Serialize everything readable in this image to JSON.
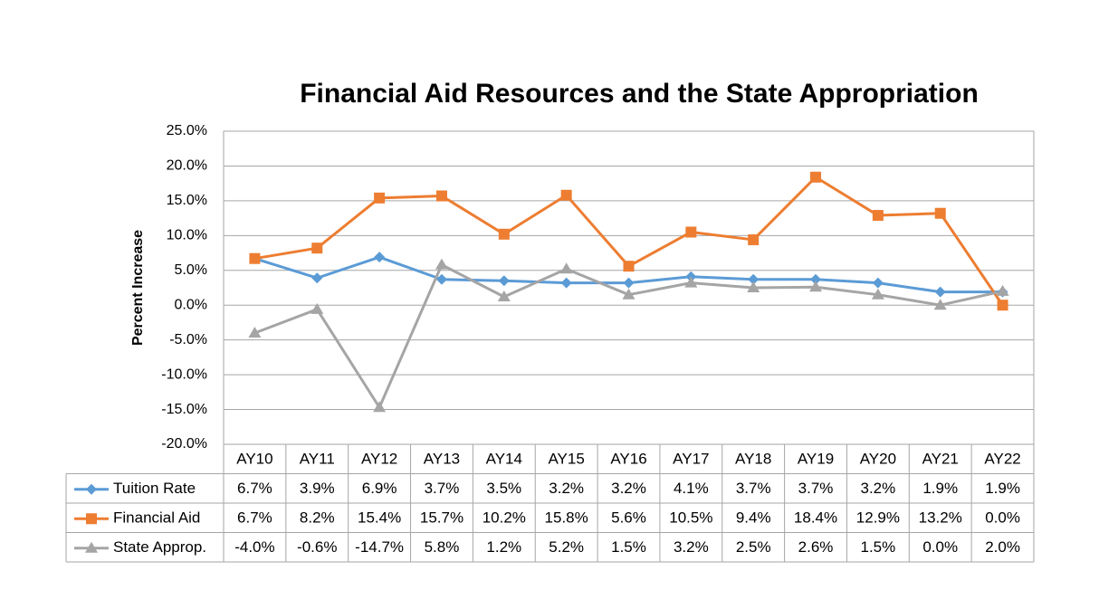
{
  "chart_data": {
    "type": "line",
    "title": "Financial Aid Resources and the State Appropriation",
    "y_label": "Percent Increase",
    "categories": [
      "AY10",
      "AY11",
      "AY12",
      "AY13",
      "AY14",
      "AY15",
      "AY16",
      "AY17",
      "AY18",
      "AY19",
      "AY20",
      "AY21",
      "AY22"
    ],
    "series": [
      {
        "name": "Tuition Rate",
        "color": "#5b9bd5",
        "marker": "diamond",
        "values": [
          6.7,
          3.9,
          6.9,
          3.7,
          3.5,
          3.2,
          3.2,
          4.1,
          3.7,
          3.7,
          3.2,
          1.9,
          1.9
        ],
        "value_labels": [
          "6.7%",
          "3.9%",
          "6.9%",
          "3.7%",
          "3.5%",
          "3.2%",
          "3.2%",
          "4.1%",
          "3.7%",
          "3.7%",
          "3.2%",
          "1.9%",
          "1.9%"
        ]
      },
      {
        "name": "Financial Aid",
        "color": "#ed7d31",
        "marker": "square",
        "values": [
          6.7,
          8.2,
          15.4,
          15.7,
          10.2,
          15.8,
          5.6,
          10.5,
          9.4,
          18.4,
          12.9,
          13.2,
          0.0
        ],
        "value_labels": [
          "6.7%",
          "8.2%",
          "15.4%",
          "15.7%",
          "10.2%",
          "15.8%",
          "5.6%",
          "10.5%",
          "9.4%",
          "18.4%",
          "12.9%",
          "13.2%",
          "0.0%"
        ]
      },
      {
        "name": "State Approp.",
        "color": "#a5a5a5",
        "marker": "triangle",
        "values": [
          -4.0,
          -0.6,
          -14.7,
          5.8,
          1.2,
          5.2,
          1.5,
          3.2,
          2.5,
          2.6,
          1.5,
          0.0,
          2.0
        ],
        "value_labels": [
          "-4.0%",
          "-0.6%",
          "-14.7%",
          "5.8%",
          "1.2%",
          "5.2%",
          "1.5%",
          "3.2%",
          "2.5%",
          "2.6%",
          "1.5%",
          "0.0%",
          "2.0%"
        ]
      }
    ],
    "ylim": [
      -20,
      25
    ],
    "yticks": [
      {
        "value": -20,
        "label": "-20.0%"
      },
      {
        "value": -15,
        "label": "-15.0%"
      },
      {
        "value": -10,
        "label": "-10.0%"
      },
      {
        "value": -5,
        "label": "-5.0%"
      },
      {
        "value": 0,
        "label": "0.0%"
      },
      {
        "value": 5,
        "label": "5.0%"
      },
      {
        "value": 10,
        "label": "10.0%"
      },
      {
        "value": 15,
        "label": "15.0%"
      },
      {
        "value": 20,
        "label": "20.0%"
      },
      {
        "value": 25,
        "label": "25.0%"
      }
    ],
    "grid": true,
    "data_table": true
  }
}
